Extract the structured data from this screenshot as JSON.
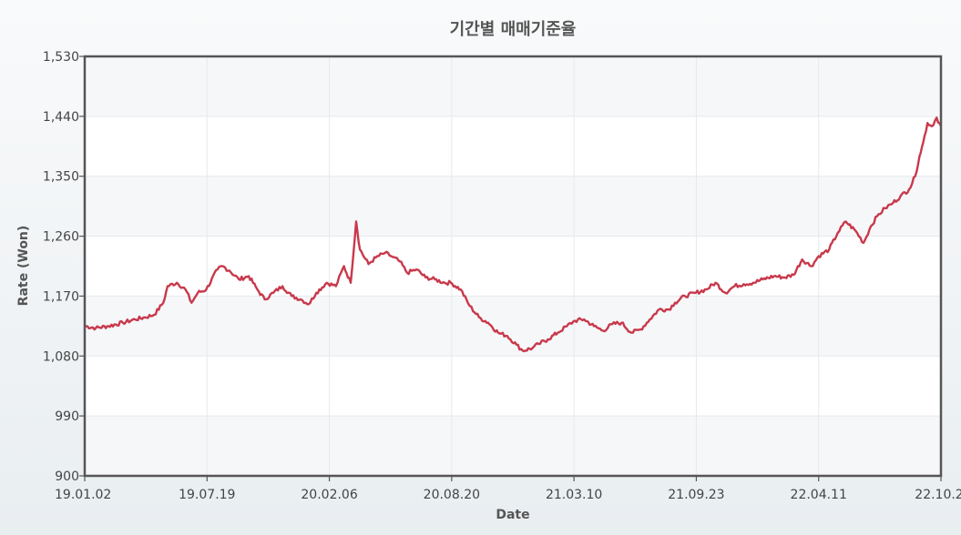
{
  "chart_data": {
    "type": "line",
    "title": "기간별 매매기준율",
    "xlabel": "Date",
    "ylabel": "Rate (Won)",
    "ylim": [
      900,
      1530
    ],
    "y_ticks": [
      900,
      990,
      1080,
      1170,
      1260,
      1350,
      1440,
      1530
    ],
    "y_tick_labels": [
      "900",
      "990",
      "1,080",
      "1,170",
      "1,260",
      "1,350",
      "1,440",
      "1,530"
    ],
    "x_ticks": [
      "19.01.02",
      "19.07.19",
      "20.02.06",
      "20.08.20",
      "21.03.10",
      "21.09.23",
      "22.04.11",
      "22.10.2"
    ],
    "x_range": [
      "2019-01-02",
      "2022-10-27"
    ],
    "grid": true,
    "line_color": "#c8394b",
    "series": [
      {
        "x": [
          "2019-01-02",
          "2019-01-20",
          "2019-02-10",
          "2019-03-05",
          "2019-03-25",
          "2019-04-10",
          "2019-04-25",
          "2019-05-10",
          "2019-05-17",
          "2019-06-01",
          "2019-06-15",
          "2019-06-25",
          "2019-07-05",
          "2019-07-19",
          "2019-08-06",
          "2019-08-14",
          "2019-08-26",
          "2019-09-10",
          "2019-09-26",
          "2019-10-10",
          "2019-10-22",
          "2019-11-05",
          "2019-11-20",
          "2019-12-05",
          "2019-12-20",
          "2020-01-02",
          "2020-01-14",
          "2020-01-31",
          "2020-02-15",
          "2020-02-28",
          "2020-03-10",
          "2020-03-19",
          "2020-03-25",
          "2020-04-08",
          "2020-04-20",
          "2020-05-05",
          "2020-05-15",
          "2020-05-29",
          "2020-06-10",
          "2020-06-25",
          "2020-07-10",
          "2020-07-25",
          "2020-08-10",
          "2020-08-20",
          "2020-09-05",
          "2020-09-20",
          "2020-10-05",
          "2020-10-20",
          "2020-11-05",
          "2020-11-20",
          "2020-12-05",
          "2020-12-15",
          "2020-12-31",
          "2021-01-10",
          "2021-01-25",
          "2021-02-10",
          "2021-02-25",
          "2021-03-10",
          "2021-03-25",
          "2021-04-10",
          "2021-04-25",
          "2021-05-10",
          "2021-05-25",
          "2021-06-10",
          "2021-06-25",
          "2021-07-10",
          "2021-07-25",
          "2021-08-10",
          "2021-08-20",
          "2021-09-05",
          "2021-09-23",
          "2021-10-10",
          "2021-10-25",
          "2021-11-10",
          "2021-11-25",
          "2021-12-10",
          "2021-12-25",
          "2022-01-10",
          "2022-01-28",
          "2022-02-15",
          "2022-03-01",
          "2022-03-15",
          "2022-03-30",
          "2022-04-11",
          "2022-04-28",
          "2022-05-12",
          "2022-05-25",
          "2022-06-10",
          "2022-06-23",
          "2022-07-05",
          "2022-07-15",
          "2022-07-28",
          "2022-08-10",
          "2022-08-22",
          "2022-09-05",
          "2022-09-15",
          "2022-09-22",
          "2022-09-28",
          "2022-10-05",
          "2022-10-12",
          "2022-10-20",
          "2022-10-27"
        ],
        "y": [
          1125,
          1122,
          1125,
          1130,
          1135,
          1138,
          1142,
          1160,
          1185,
          1190,
          1180,
          1160,
          1175,
          1180,
          1210,
          1215,
          1208,
          1195,
          1200,
          1180,
          1165,
          1175,
          1185,
          1170,
          1165,
          1158,
          1175,
          1190,
          1185,
          1215,
          1190,
          1282,
          1240,
          1218,
          1228,
          1235,
          1230,
          1222,
          1205,
          1210,
          1198,
          1195,
          1190,
          1190,
          1180,
          1155,
          1138,
          1130,
          1115,
          1110,
          1097,
          1088,
          1092,
          1098,
          1105,
          1115,
          1125,
          1133,
          1135,
          1125,
          1118,
          1128,
          1130,
          1115,
          1120,
          1135,
          1150,
          1150,
          1160,
          1170,
          1175,
          1180,
          1190,
          1175,
          1185,
          1188,
          1190,
          1195,
          1200,
          1198,
          1202,
          1225,
          1215,
          1230,
          1240,
          1265,
          1282,
          1268,
          1250,
          1275,
          1290,
          1302,
          1310,
          1320,
          1330,
          1350,
          1380,
          1400,
          1430,
          1425,
          1438,
          1425
        ]
      }
    ]
  }
}
